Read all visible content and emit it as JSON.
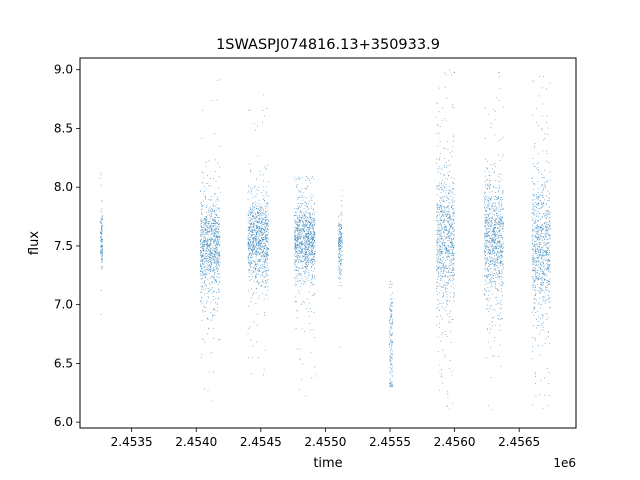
{
  "chart_data": {
    "type": "scatter",
    "title": "1SWASPJ074816.13+350933.9",
    "xlabel": "time",
    "ylabel": "flux",
    "x_offset_label": "1e6",
    "xlim": [
      2453100,
      2456940
    ],
    "ylim": [
      5.95,
      9.1
    ],
    "xticks": [
      2453500,
      2454000,
      2454500,
      2455000,
      2455500,
      2456000,
      2456500
    ],
    "xtick_labels": [
      "2.4535",
      "2.4540",
      "2.4545",
      "2.4550",
      "2.4555",
      "2.4560",
      "2.4565"
    ],
    "yticks": [
      6.0,
      6.5,
      7.0,
      7.5,
      8.0,
      8.5,
      9.0
    ],
    "ytick_labels": [
      "6.0",
      "6.5",
      "7.0",
      "7.5",
      "8.0",
      "8.5",
      "9.0"
    ],
    "grid": false,
    "marker_color": "#1f77b4",
    "observing_seasons": [
      {
        "x_range": [
          2453258,
          2453275
        ],
        "y_center": 7.55,
        "y_spread": 0.14,
        "y_range": [
          6.25,
          8.6
        ]
      },
      {
        "x_range": [
          2454030,
          2454185
        ],
        "y_center": 7.5,
        "y_spread": 0.19,
        "y_range": [
          6.15,
          8.95
        ]
      },
      {
        "x_range": [
          2454400,
          2454560
        ],
        "y_center": 7.55,
        "y_spread": 0.17,
        "y_range": [
          6.3,
          8.8
        ]
      },
      {
        "x_range": [
          2454760,
          2454920
        ],
        "y_center": 7.55,
        "y_spread": 0.17,
        "y_range": [
          6.2,
          8.1
        ]
      },
      {
        "x_range": [
          2455100,
          2455130
        ],
        "y_center": 7.5,
        "y_spread": 0.13,
        "y_range": [
          6.25,
          7.98
        ]
      },
      {
        "x_range": [
          2455495,
          2455520
        ],
        "y_center": 6.7,
        "y_spread": 0.25,
        "y_range": [
          6.3,
          7.2
        ]
      },
      {
        "x_range": [
          2455860,
          2456000
        ],
        "y_center": 7.55,
        "y_spread": 0.28,
        "y_range": [
          6.1,
          9.0
        ]
      },
      {
        "x_range": [
          2456230,
          2456380
        ],
        "y_center": 7.55,
        "y_spread": 0.25,
        "y_range": [
          6.1,
          9.0
        ]
      },
      {
        "x_range": [
          2456600,
          2456740
        ],
        "y_center": 7.5,
        "y_spread": 0.28,
        "y_range": [
          6.1,
          8.95
        ]
      }
    ]
  }
}
